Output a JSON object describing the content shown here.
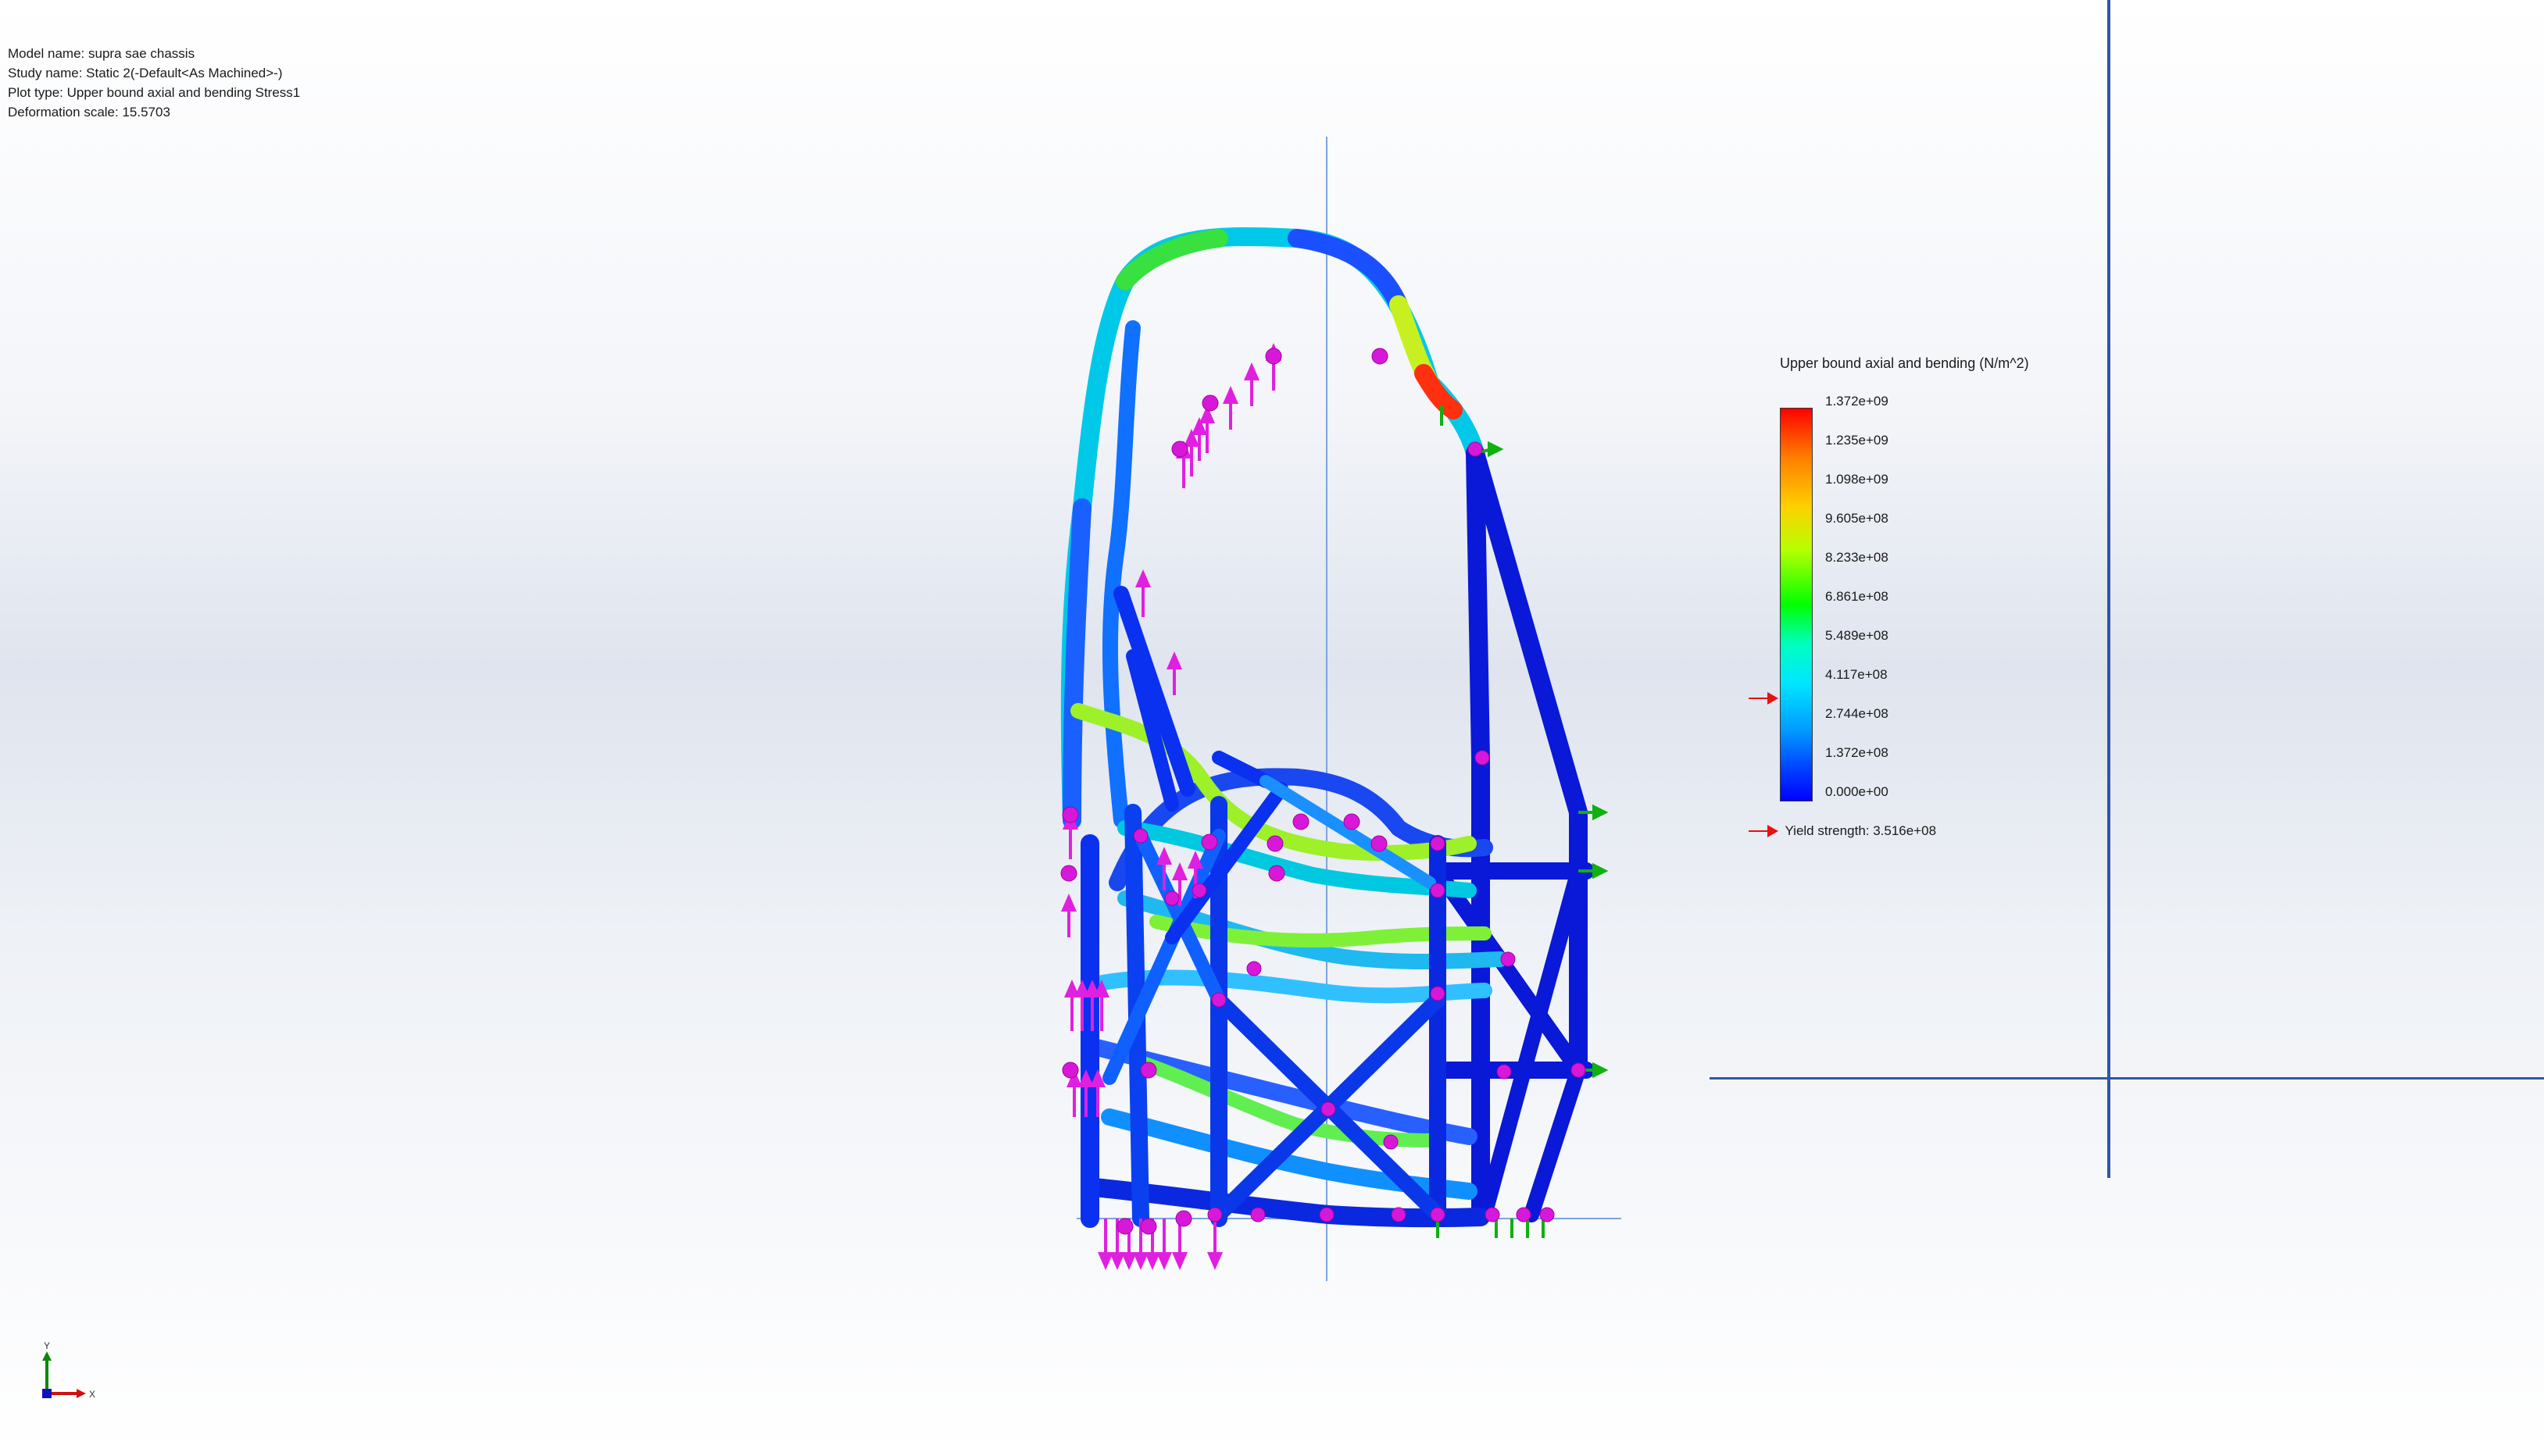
{
  "info": {
    "model_name": "Model name: supra sae chassis",
    "study_name": "Study name: Static 2(-Default<As Machined>-)",
    "plot_type": "Plot type: Upper bound axial and bending Stress1",
    "deformation_scale": "Deformation scale: 15.5703"
  },
  "legend": {
    "title": "Upper bound axial and bending (N/m^2)",
    "ticks": [
      "1.372e+09",
      "1.235e+09",
      "1.098e+09",
      "9.605e+08",
      "8.233e+08",
      "6.861e+08",
      "5.489e+08",
      "4.117e+08",
      "2.744e+08",
      "1.372e+08",
      "0.000e+00"
    ],
    "yield_label": "Yield strength: 3.516e+08",
    "colors": {
      "max": "#ff0000",
      "high": "#ffd000",
      "mid": "#00ff00",
      "low_mid": "#00e6ff",
      "low": "#0000ff",
      "marker": "#e81010"
    }
  },
  "triad": {
    "y_label": "Y",
    "x_label": "X"
  },
  "scene": {
    "load_color": "#e020e0",
    "fixture_color": "#10b010"
  }
}
